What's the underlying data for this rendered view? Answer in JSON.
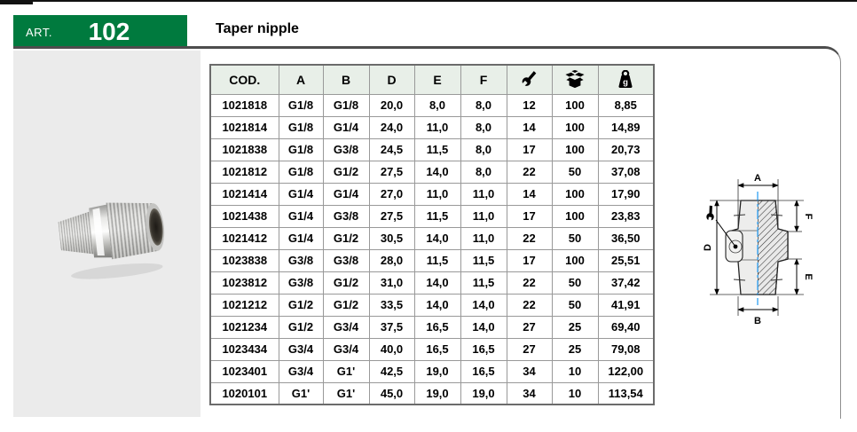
{
  "header": {
    "art_label": "ART.",
    "art_number": "102",
    "product_title": "Taper nipple"
  },
  "colors": {
    "brand_green": "#007A3E",
    "table_header_bg": "#E8EFE8",
    "side_panel_gray": "#EBEBEB",
    "centerline_blue": "#3FA9F5"
  },
  "table": {
    "columns": [
      "COD.",
      "A",
      "B",
      "D",
      "E",
      "F"
    ],
    "icon_columns": [
      "wrench-icon",
      "package-icon",
      "weight-icon"
    ],
    "weight_icon_letter": "g",
    "rows": [
      [
        "1021818",
        "G1/8",
        "G1/8",
        "20,0",
        "8,0",
        "8,0",
        "12",
        "100",
        "8,85"
      ],
      [
        "1021814",
        "G1/8",
        "G1/4",
        "24,0",
        "11,0",
        "8,0",
        "14",
        "100",
        "14,89"
      ],
      [
        "1021838",
        "G1/8",
        "G3/8",
        "24,5",
        "11,5",
        "8,0",
        "17",
        "100",
        "20,73"
      ],
      [
        "1021812",
        "G1/8",
        "G1/2",
        "27,5",
        "14,0",
        "8,0",
        "22",
        "50",
        "37,08"
      ],
      [
        "1021414",
        "G1/4",
        "G1/4",
        "27,0",
        "11,0",
        "11,0",
        "14",
        "100",
        "17,90"
      ],
      [
        "1021438",
        "G1/4",
        "G3/8",
        "27,5",
        "11,5",
        "11,0",
        "17",
        "100",
        "23,83"
      ],
      [
        "1021412",
        "G1/4",
        "G1/2",
        "30,5",
        "14,0",
        "11,0",
        "22",
        "50",
        "36,50"
      ],
      [
        "1023838",
        "G3/8",
        "G3/8",
        "28,0",
        "11,5",
        "11,5",
        "17",
        "100",
        "25,51"
      ],
      [
        "1023812",
        "G3/8",
        "G1/2",
        "31,0",
        "14,0",
        "11,5",
        "22",
        "50",
        "37,42"
      ],
      [
        "1021212",
        "G1/2",
        "G1/2",
        "33,5",
        "14,0",
        "14,0",
        "22",
        "50",
        "41,91"
      ],
      [
        "1021234",
        "G1/2",
        "G3/4",
        "37,5",
        "16,5",
        "14,0",
        "27",
        "25",
        "69,40"
      ],
      [
        "1023434",
        "G3/4",
        "G3/4",
        "40,0",
        "16,5",
        "16,5",
        "27",
        "25",
        "79,08"
      ],
      [
        "1023401",
        "G3/4",
        "G1'",
        "42,5",
        "19,0",
        "16,5",
        "34",
        "10",
        "122,00"
      ],
      [
        "1020101",
        "G1'",
        "G1'",
        "45,0",
        "19,0",
        "19,0",
        "34",
        "10",
        "113,54"
      ]
    ]
  },
  "diagram": {
    "labels": {
      "a": "A",
      "b": "B",
      "d": "D",
      "e": "E",
      "f": "F"
    }
  }
}
